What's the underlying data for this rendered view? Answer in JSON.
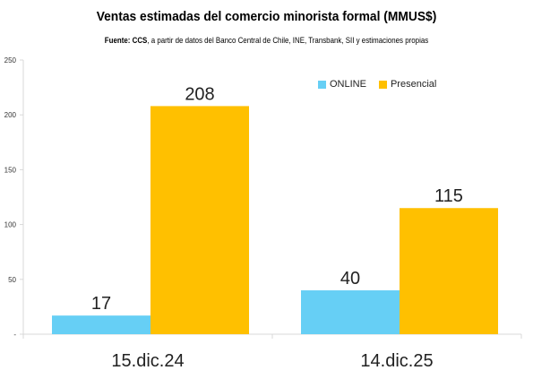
{
  "title": "Ventas estimadas del comercio minorista formal (MMUS$)",
  "subtitle": {
    "source_label": "Fuente: CCS",
    "source_text": ", a partir de datos del Banco Central de Chile, INE, Transbank, SII y estimaciones propias"
  },
  "colors": {
    "online": "#66CFF5",
    "presencial": "#FFC000",
    "axis": "#d9d9d9",
    "text": "#222222"
  },
  "chart_data": {
    "type": "bar",
    "categories": [
      "15.dic.24",
      "14.dic.25"
    ],
    "series": [
      {
        "name": "ONLINE",
        "values": [
          17,
          40
        ],
        "color": "#66CFF5"
      },
      {
        "name": "Presencial",
        "values": [
          208,
          115
        ],
        "color": "#FFC000"
      }
    ],
    "ylim": [
      0,
      250
    ],
    "yticks": [
      "-",
      "50",
      "100",
      "150",
      "200",
      "250"
    ],
    "ytick_values": [
      0,
      50,
      100,
      150,
      200,
      250
    ],
    "data_labels": [
      [
        "17",
        "40"
      ],
      [
        "208",
        "115"
      ]
    ],
    "legend_position": "top-right",
    "grid": false
  }
}
